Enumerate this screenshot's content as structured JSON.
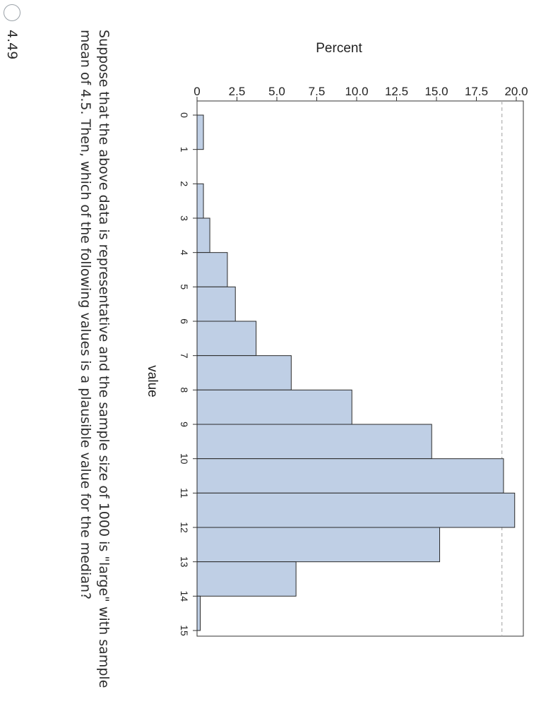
{
  "chart_data": {
    "type": "bar",
    "xlabel": "value",
    "ylabel": "Percent",
    "x_ticks": [
      "0",
      "1",
      "2",
      "3",
      "4",
      "5",
      "6",
      "7",
      "8",
      "9",
      "10",
      "11",
      "12",
      "13",
      "14",
      "15"
    ],
    "y_ticks": [
      "0",
      "2.5",
      "5.0",
      "7.5",
      "10.0",
      "12.5",
      "15.0",
      "17.5",
      "20.0"
    ],
    "ylim": [
      0,
      20
    ],
    "xlim": [
      0,
      15
    ],
    "bins": [
      {
        "from": 0,
        "to": 1,
        "value": 0.4
      },
      {
        "from": 2,
        "to": 3,
        "value": 0.4
      },
      {
        "from": 3,
        "to": 4,
        "value": 0.8
      },
      {
        "from": 4,
        "to": 5,
        "value": 1.9
      },
      {
        "from": 5,
        "to": 6,
        "value": 2.4
      },
      {
        "from": 6,
        "to": 7,
        "value": 3.7
      },
      {
        "from": 7,
        "to": 8,
        "value": 5.9
      },
      {
        "from": 8,
        "to": 9,
        "value": 9.7
      },
      {
        "from": 9,
        "to": 10,
        "value": 14.7
      },
      {
        "from": 10,
        "to": 11,
        "value": 19.2
      },
      {
        "from": 11,
        "to": 12,
        "value": 19.9
      },
      {
        "from": 12,
        "to": 13,
        "value": 15.2
      },
      {
        "from": 13,
        "to": 14,
        "value": 6.2
      },
      {
        "from": 14,
        "to": 15,
        "value": 0.2
      }
    ],
    "reference_line": 19.1,
    "colors": {
      "bar_fill": "#bfcfe5",
      "bar_stroke": "#2a2a2a",
      "reference_line": "#b0b0b0"
    }
  },
  "question": {
    "text": "Suppose that the above data is representative and the sample size of 1000 is \"large\" with sample mean of 4.5. Then, which of the following values is a plausible value for the median?"
  },
  "options": [
    {
      "label": "4.49"
    }
  ]
}
